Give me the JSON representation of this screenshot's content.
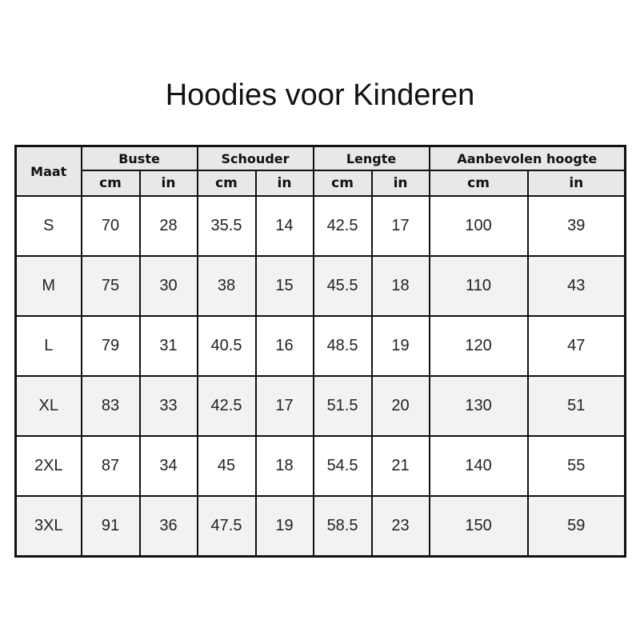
{
  "title": "Hoodies voor Kinderen",
  "table": {
    "size_header": "Maat",
    "groups": [
      "Buste",
      "Schouder",
      "Lengte",
      "Aanbevolen hoogte"
    ],
    "units": [
      "cm",
      "in",
      "cm",
      "in",
      "cm",
      "in",
      "cm",
      "in"
    ],
    "rows": [
      [
        "S",
        "70",
        "28",
        "35.5",
        "14",
        "42.5",
        "17",
        "100",
        "39"
      ],
      [
        "M",
        "75",
        "30",
        "38",
        "15",
        "45.5",
        "18",
        "110",
        "43"
      ],
      [
        "L",
        "79",
        "31",
        "40.5",
        "16",
        "48.5",
        "19",
        "120",
        "47"
      ],
      [
        "XL",
        "83",
        "33",
        "42.5",
        "17",
        "51.5",
        "20",
        "130",
        "51"
      ],
      [
        "2XL",
        "87",
        "34",
        "45",
        "18",
        "54.5",
        "21",
        "140",
        "55"
      ],
      [
        "3XL",
        "91",
        "36",
        "47.5",
        "19",
        "58.5",
        "23",
        "150",
        "59"
      ]
    ]
  },
  "colors": {
    "header_bg": "#e8e8e8",
    "alt_row_bg": "#f2f2f2",
    "border": "#111111"
  }
}
